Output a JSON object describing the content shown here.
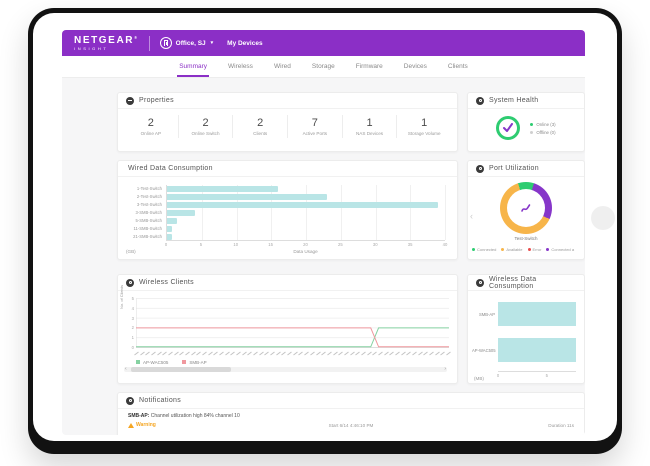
{
  "colors": {
    "brand_purple": "#8b2fc6",
    "teal_bar": "#b9e5e6",
    "green": "#2ecc71",
    "orange": "#f7b54a",
    "red": "#e84c4c",
    "donut_purple": "#8636c9",
    "warning_orange": "#f5a623"
  },
  "header": {
    "brand": "NETGEAR",
    "brand_reg": "®",
    "brand_sub": "INSIGHT",
    "org": "Office, SJ",
    "org_caret": "▾",
    "my_devices": "My Devices"
  },
  "tabs": [
    {
      "label": "Summary",
      "active": true
    },
    {
      "label": "Wireless",
      "active": false
    },
    {
      "label": "Wired",
      "active": false
    },
    {
      "label": "Storage",
      "active": false
    },
    {
      "label": "Firmware",
      "active": false
    },
    {
      "label": "Devices",
      "active": false
    },
    {
      "label": "Clients",
      "active": false
    }
  ],
  "properties": {
    "title": "Properties",
    "stats": [
      {
        "value": "2",
        "label": "Online AP"
      },
      {
        "value": "2",
        "label": "Online Switch"
      },
      {
        "value": "2",
        "label": "Clients"
      },
      {
        "value": "7",
        "label": "Active Ports"
      },
      {
        "value": "1",
        "label": "NAS Devices"
      },
      {
        "value": "1",
        "label": "Storage Volume"
      }
    ]
  },
  "system_health": {
    "title": "System Health",
    "legend": [
      {
        "label": "Online (3)",
        "color": "#2ecc71"
      },
      {
        "label": "Offline (0)",
        "color": "#d0d0d0"
      }
    ]
  },
  "wired_chart": {
    "type": "bar",
    "title": "Wired Data Consumption",
    "categories": [
      "1-Test-Switch",
      "2-Test-Switch",
      "3-Test-Switch",
      "3-SMB-Switch",
      "5-SMB-Switch",
      "11-SMB-Switch",
      "21-SMB-Switch"
    ],
    "values": [
      16,
      23,
      39,
      4,
      1.5,
      0.7,
      0.7
    ],
    "xmax": 40,
    "xticks": [
      0,
      5,
      10,
      15,
      20,
      25,
      30,
      35,
      40
    ],
    "xlabel": "Data Usage",
    "unit": "(GB)"
  },
  "port_utilization": {
    "title": "Port Utilization",
    "device": "Test-Switch",
    "chevron_left": "‹",
    "segments": [
      {
        "label": "Connected",
        "color": "#2ecc71",
        "pct": 10
      },
      {
        "label": "Connected a",
        "color": "#8636c9",
        "pct": 27
      },
      {
        "label": "Available",
        "color": "#f7b54a",
        "pct": 63
      }
    ],
    "legend": [
      {
        "label": "Connected",
        "color": "#2ecc71"
      },
      {
        "label": "Available",
        "color": "#f7b54a"
      },
      {
        "label": "Error",
        "color": "#e84c4c"
      },
      {
        "label": "Connected a",
        "color": "#8636c9"
      }
    ]
  },
  "wireless_clients": {
    "type": "line",
    "title": "Wireless Clients",
    "ylabel": "No. of Clients",
    "yticks": [
      0,
      1,
      2,
      3,
      4,
      5
    ],
    "ymax": 5,
    "x_tick_count": 56,
    "scroll_left_arrow": "‹",
    "scroll_right_arrow": "›",
    "series": [
      {
        "name": "AP-WAC505",
        "color": "#86d2a2",
        "points": [
          [
            0,
            0.07
          ],
          [
            75,
            0.07
          ],
          [
            77.5,
            2
          ],
          [
            100,
            2
          ]
        ]
      },
      {
        "name": "SMB-AP",
        "color": "#f0989e",
        "points": [
          [
            0,
            2
          ],
          [
            75,
            2
          ],
          [
            77.5,
            0.07
          ],
          [
            100,
            0.07
          ]
        ]
      }
    ]
  },
  "wireless_data": {
    "type": "bar",
    "title": "Wireless Data Consumption",
    "categories": [
      "SMB-AP",
      "AP-WAC505"
    ],
    "values": [
      8,
      8
    ],
    "xmax": 8,
    "xticks": [
      0,
      5
    ],
    "unit": "(MB)"
  },
  "notifications": {
    "title": "Notifications",
    "rows": [
      {
        "device": "SMB-AP:",
        "message": "Channel utilization high 84% channel 10",
        "severity": "Warning",
        "start": "Start 6/14 4:46:10 PM",
        "duration": "Duration 11s"
      }
    ]
  }
}
